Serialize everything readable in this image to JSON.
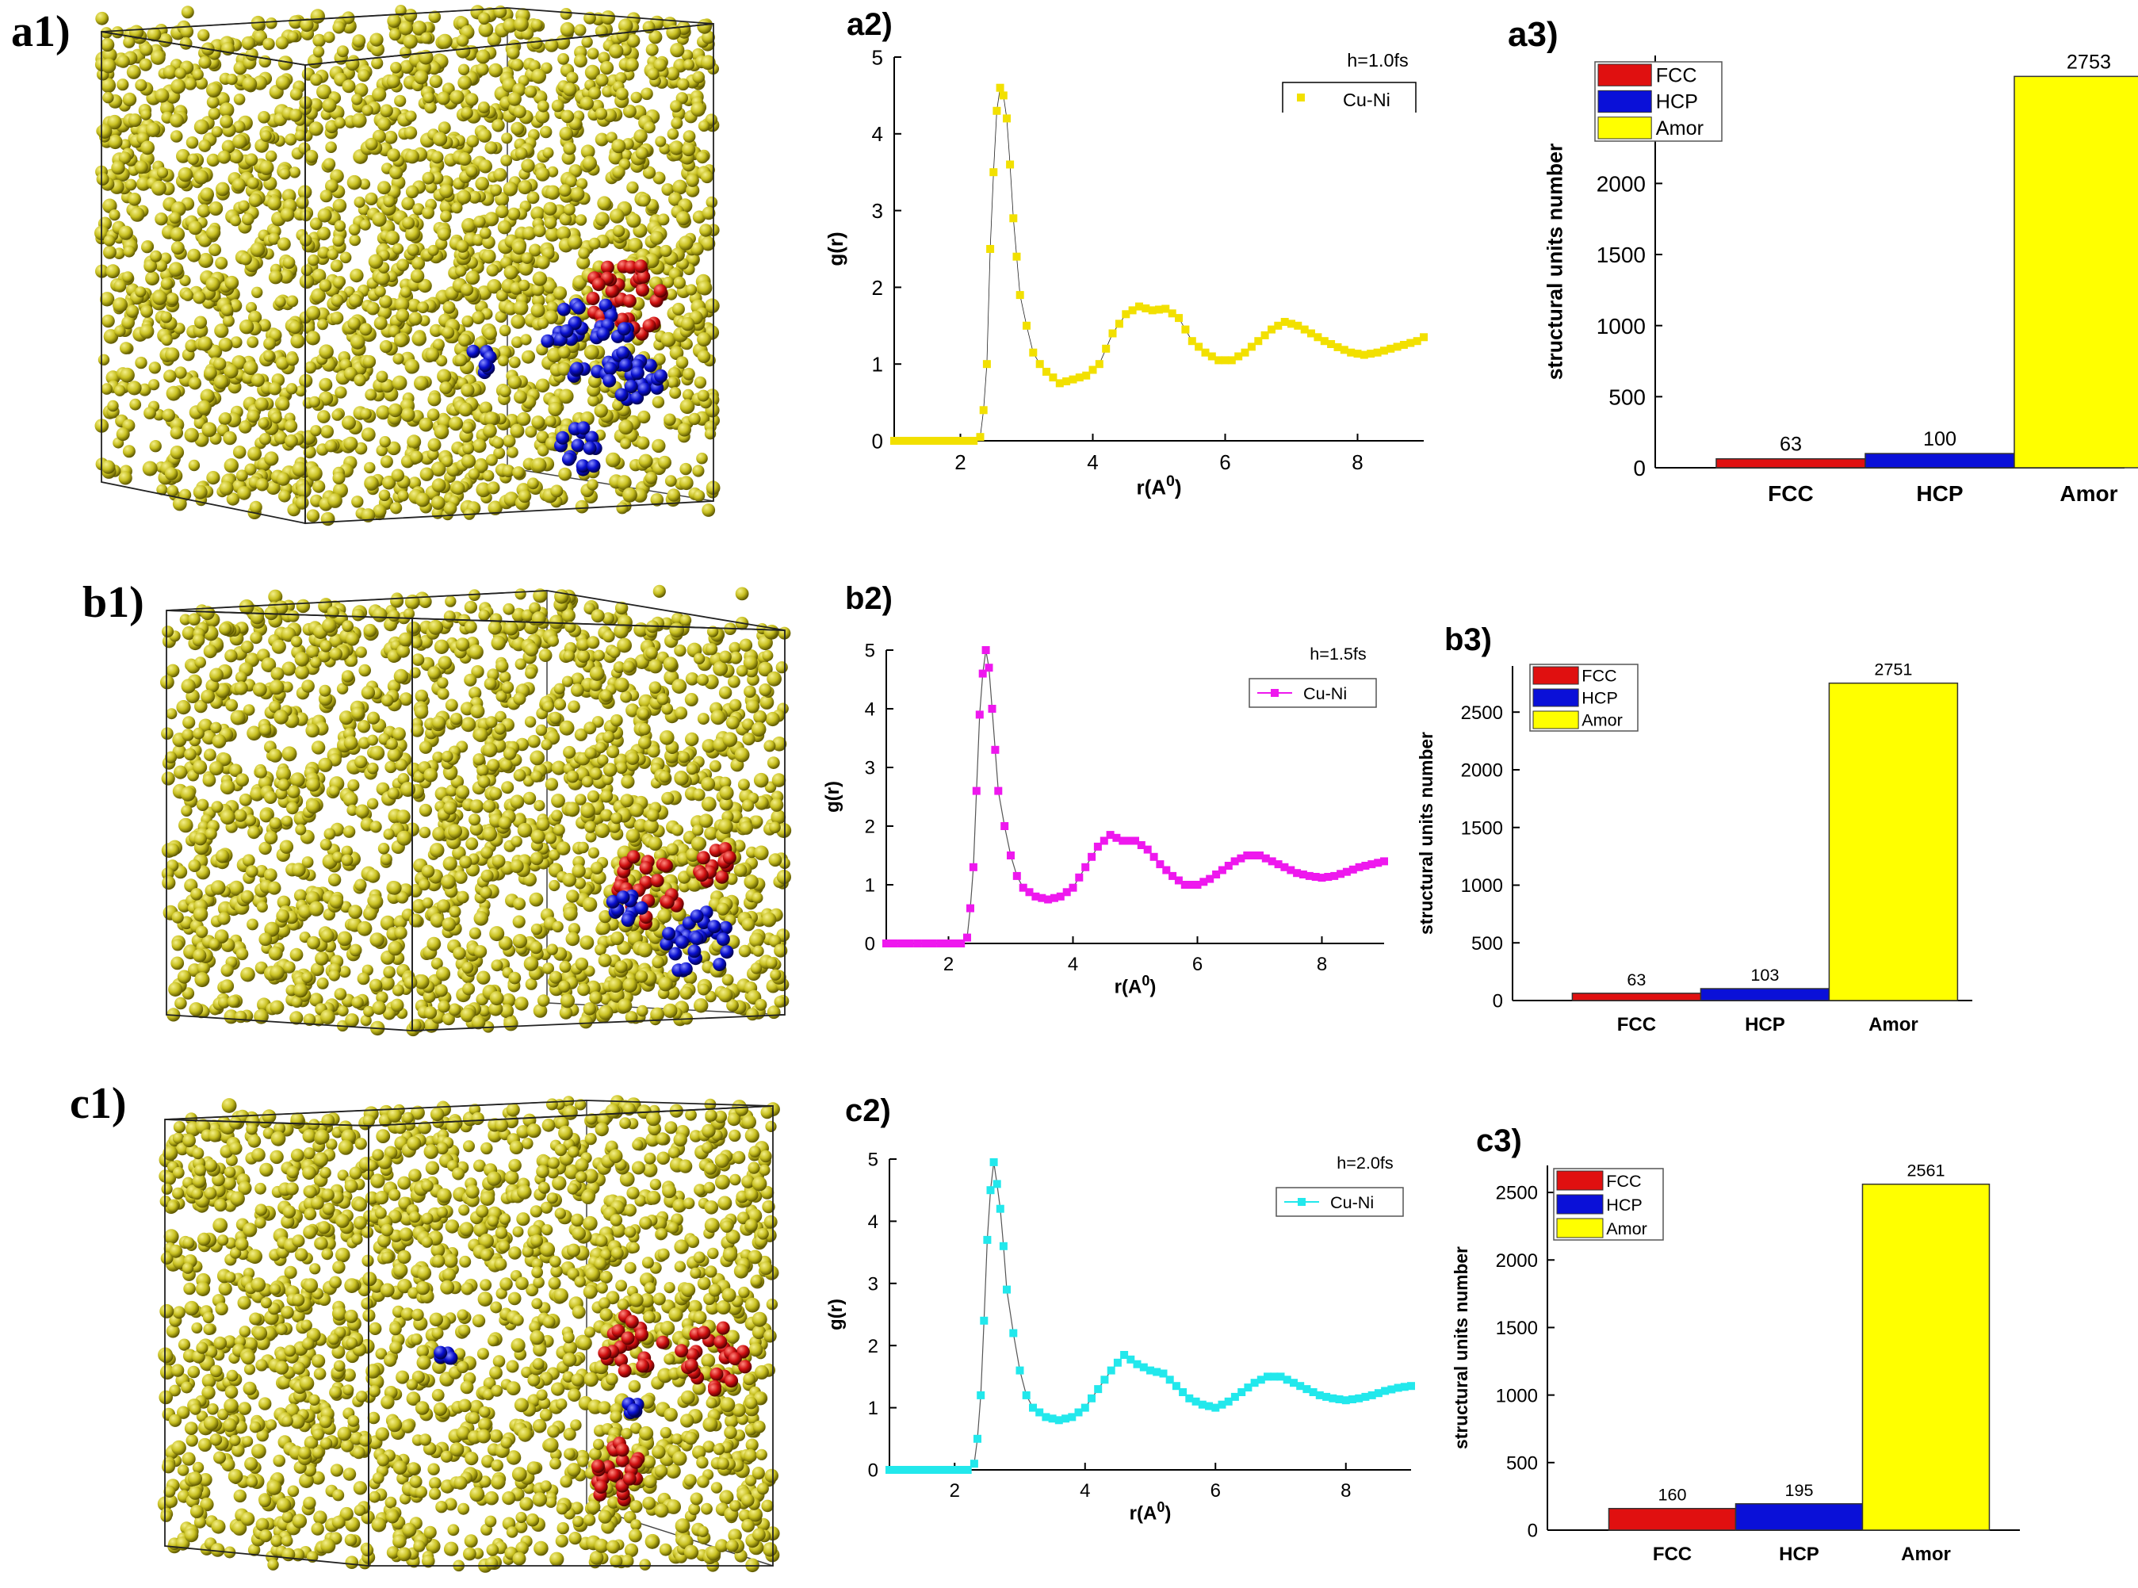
{
  "colors": {
    "atom": "#c8c020",
    "atom_light": "#f4ef8a",
    "atom_dark": "#5e5800",
    "fcc": "#e01010",
    "hcp": "#0a10d8",
    "amor": "#ffff00",
    "a2_series": "#f2e000",
    "b2_series": "#ee18ee",
    "c2_series": "#22e8ec"
  },
  "panels": {
    "a1": "a1)",
    "a2": "a2)",
    "a3": "a3)",
    "b1": "b1)",
    "b2": "b2)",
    "b3": "b3)",
    "c1": "c1)",
    "c2": "c2)",
    "c3": "c3)"
  },
  "chart_data": [
    {
      "id": "a2",
      "type": "scatter",
      "title": "",
      "annotation": "h=1.0fs",
      "legend": [
        "Cu-Ni"
      ],
      "xlabel": "r(A",
      "xlabel_sup": "0",
      "xlabel_end": ")",
      "ylabel": "g(r)",
      "xlim": [
        1,
        9
      ],
      "ylim": [
        0,
        5
      ],
      "xticks": [
        "2",
        "4",
        "6",
        "8"
      ],
      "yticks": [
        "0",
        "1",
        "2",
        "3",
        "4",
        "5"
      ],
      "points": [
        [
          1.0,
          0
        ],
        [
          1.5,
          0
        ],
        [
          2.0,
          0
        ],
        [
          2.2,
          0
        ],
        [
          2.3,
          0.05
        ],
        [
          2.35,
          0.4
        ],
        [
          2.4,
          1.0
        ],
        [
          2.45,
          2.5
        ],
        [
          2.5,
          3.5
        ],
        [
          2.55,
          4.3
        ],
        [
          2.6,
          4.6
        ],
        [
          2.65,
          4.5
        ],
        [
          2.7,
          4.2
        ],
        [
          2.75,
          3.6
        ],
        [
          2.8,
          2.9
        ],
        [
          2.85,
          2.4
        ],
        [
          2.9,
          1.9
        ],
        [
          3.0,
          1.5
        ],
        [
          3.1,
          1.15
        ],
        [
          3.2,
          1.0
        ],
        [
          3.3,
          0.9
        ],
        [
          3.5,
          0.75
        ],
        [
          3.7,
          0.8
        ],
        [
          3.9,
          0.85
        ],
        [
          4.1,
          1.0
        ],
        [
          4.3,
          1.4
        ],
        [
          4.5,
          1.65
        ],
        [
          4.7,
          1.75
        ],
        [
          4.9,
          1.7
        ],
        [
          5.1,
          1.72
        ],
        [
          5.3,
          1.6
        ],
        [
          5.5,
          1.3
        ],
        [
          5.7,
          1.15
        ],
        [
          5.9,
          1.05
        ],
        [
          6.1,
          1.05
        ],
        [
          6.3,
          1.15
        ],
        [
          6.5,
          1.3
        ],
        [
          6.7,
          1.45
        ],
        [
          6.9,
          1.55
        ],
        [
          7.1,
          1.5
        ],
        [
          7.3,
          1.4
        ],
        [
          7.5,
          1.3
        ],
        [
          7.7,
          1.22
        ],
        [
          7.9,
          1.15
        ],
        [
          8.1,
          1.12
        ],
        [
          8.3,
          1.15
        ],
        [
          8.5,
          1.2
        ],
        [
          8.7,
          1.25
        ],
        [
          8.9,
          1.3
        ],
        [
          9.0,
          1.35
        ]
      ]
    },
    {
      "id": "a3",
      "type": "bar",
      "ylabel": "structural units number",
      "categories": [
        "FCC",
        "HCP",
        "Amor"
      ],
      "values": [
        63,
        100,
        2753
      ],
      "value_labels": [
        "63",
        "100",
        "2753"
      ],
      "legend": [
        "FCC",
        "HCP",
        "Amor"
      ],
      "ylim": [
        0,
        2900
      ],
      "yticks": [
        "0",
        "500",
        "1000",
        "1500",
        "2000",
        "2500"
      ]
    },
    {
      "id": "b2",
      "type": "line",
      "annotation": "h=1.5fs",
      "legend": [
        "Cu-Ni"
      ],
      "xlabel": "r(A",
      "xlabel_sup": "0",
      "xlabel_end": ")",
      "ylabel": "g(r)",
      "xlim": [
        1,
        9
      ],
      "ylim": [
        0,
        5
      ],
      "xticks": [
        "2",
        "4",
        "6",
        "8"
      ],
      "yticks": [
        "0",
        "1",
        "2",
        "3",
        "4",
        "5"
      ],
      "points": [
        [
          1.0,
          0
        ],
        [
          1.5,
          0
        ],
        [
          2.0,
          0
        ],
        [
          2.2,
          0
        ],
        [
          2.3,
          0.1
        ],
        [
          2.35,
          0.6
        ],
        [
          2.4,
          1.3
        ],
        [
          2.45,
          2.6
        ],
        [
          2.5,
          3.9
        ],
        [
          2.55,
          4.6
        ],
        [
          2.6,
          5.0
        ],
        [
          2.65,
          4.7
        ],
        [
          2.7,
          4.0
        ],
        [
          2.75,
          3.3
        ],
        [
          2.8,
          2.6
        ],
        [
          2.9,
          2.0
        ],
        [
          3.0,
          1.5
        ],
        [
          3.1,
          1.15
        ],
        [
          3.2,
          0.95
        ],
        [
          3.4,
          0.8
        ],
        [
          3.6,
          0.75
        ],
        [
          3.8,
          0.8
        ],
        [
          4.0,
          0.95
        ],
        [
          4.2,
          1.3
        ],
        [
          4.4,
          1.65
        ],
        [
          4.6,
          1.85
        ],
        [
          4.8,
          1.75
        ],
        [
          5.0,
          1.75
        ],
        [
          5.2,
          1.6
        ],
        [
          5.4,
          1.35
        ],
        [
          5.6,
          1.15
        ],
        [
          5.8,
          1.0
        ],
        [
          6.0,
          1.0
        ],
        [
          6.2,
          1.1
        ],
        [
          6.4,
          1.25
        ],
        [
          6.6,
          1.4
        ],
        [
          6.8,
          1.5
        ],
        [
          7.0,
          1.5
        ],
        [
          7.2,
          1.4
        ],
        [
          7.4,
          1.3
        ],
        [
          7.6,
          1.2
        ],
        [
          7.8,
          1.15
        ],
        [
          8.0,
          1.12
        ],
        [
          8.2,
          1.15
        ],
        [
          8.4,
          1.22
        ],
        [
          8.6,
          1.3
        ],
        [
          8.8,
          1.35
        ],
        [
          9.0,
          1.4
        ]
      ]
    },
    {
      "id": "b3",
      "type": "bar",
      "ylabel": "structural units number",
      "categories": [
        "FCC",
        "HCP",
        "Amor"
      ],
      "values": [
        63,
        103,
        2751
      ],
      "value_labels": [
        "63",
        "103",
        "2751"
      ],
      "legend": [
        "FCC",
        "HCP",
        "Amor"
      ],
      "ylim": [
        0,
        2900
      ],
      "yticks": [
        "0",
        "500",
        "1000",
        "1500",
        "2000",
        "2500"
      ]
    },
    {
      "id": "c2",
      "type": "line",
      "annotation": "h=2.0fs",
      "legend": [
        "Cu-Ni"
      ],
      "xlabel": "r(A",
      "xlabel_sup": "0",
      "xlabel_end": ")",
      "ylabel": "g(r)",
      "xlim": [
        1,
        9
      ],
      "ylim": [
        0,
        5
      ],
      "xticks": [
        "2",
        "4",
        "6",
        "8"
      ],
      "yticks": [
        "0",
        "1",
        "2",
        "3",
        "4",
        "5"
      ],
      "points": [
        [
          1.0,
          0
        ],
        [
          1.5,
          0
        ],
        [
          2.0,
          0
        ],
        [
          2.2,
          0
        ],
        [
          2.3,
          0.1
        ],
        [
          2.35,
          0.5
        ],
        [
          2.4,
          1.2
        ],
        [
          2.45,
          2.4
        ],
        [
          2.5,
          3.7
        ],
        [
          2.55,
          4.5
        ],
        [
          2.6,
          4.95
        ],
        [
          2.65,
          4.6
        ],
        [
          2.7,
          4.2
        ],
        [
          2.75,
          3.6
        ],
        [
          2.8,
          2.9
        ],
        [
          2.9,
          2.2
        ],
        [
          3.0,
          1.6
        ],
        [
          3.1,
          1.2
        ],
        [
          3.2,
          1.0
        ],
        [
          3.4,
          0.85
        ],
        [
          3.6,
          0.8
        ],
        [
          3.8,
          0.85
        ],
        [
          4.0,
          1.0
        ],
        [
          4.2,
          1.3
        ],
        [
          4.4,
          1.6
        ],
        [
          4.6,
          1.85
        ],
        [
          4.8,
          1.7
        ],
        [
          5.0,
          1.6
        ],
        [
          5.2,
          1.55
        ],
        [
          5.4,
          1.35
        ],
        [
          5.6,
          1.15
        ],
        [
          5.8,
          1.05
        ],
        [
          6.0,
          1.0
        ],
        [
          6.2,
          1.1
        ],
        [
          6.4,
          1.25
        ],
        [
          6.6,
          1.4
        ],
        [
          6.8,
          1.5
        ],
        [
          7.0,
          1.5
        ],
        [
          7.2,
          1.4
        ],
        [
          7.4,
          1.3
        ],
        [
          7.6,
          1.2
        ],
        [
          7.8,
          1.15
        ],
        [
          8.0,
          1.12
        ],
        [
          8.2,
          1.15
        ],
        [
          8.4,
          1.2
        ],
        [
          8.6,
          1.27
        ],
        [
          8.8,
          1.32
        ],
        [
          9.0,
          1.35
        ]
      ]
    },
    {
      "id": "c3",
      "type": "bar",
      "ylabel": "structural units number",
      "categories": [
        "FCC",
        "HCP",
        "Amor"
      ],
      "values": [
        160,
        195,
        2561
      ],
      "value_labels": [
        "160",
        "195",
        "2561"
      ],
      "legend": [
        "FCC",
        "HCP",
        "Amor"
      ],
      "ylim": [
        0,
        2700
      ],
      "yticks": [
        "0",
        "500",
        "1000",
        "1500",
        "2000",
        "2500"
      ]
    }
  ]
}
